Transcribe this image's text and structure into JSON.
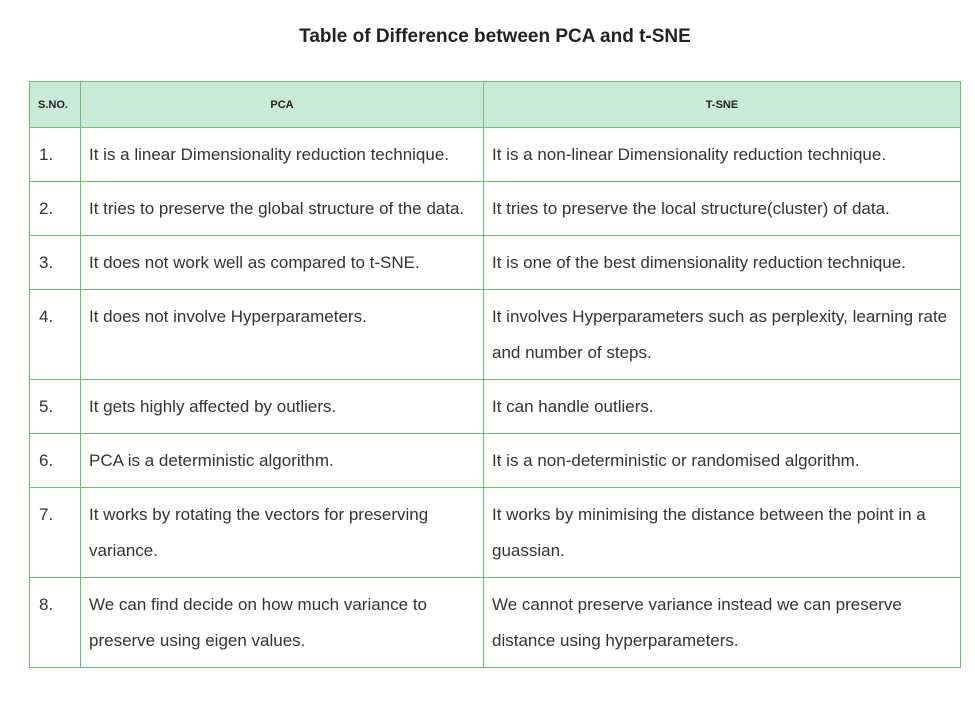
{
  "title": "Table of Difference between PCA and t-SNE",
  "table": {
    "headers": [
      "S.NO.",
      "PCA",
      "T-SNE"
    ],
    "rows": [
      {
        "sno": "1.",
        "pca": "It is a linear Dimensionality reduction technique.",
        "tsne": "It is a non-linear Dimensionality reduction technique."
      },
      {
        "sno": "2.",
        "pca": "It tries to preserve the global structure of the data.",
        "tsne": "It tries to preserve the local structure(cluster) of data."
      },
      {
        "sno": "3.",
        "pca": "It does not work well as compared to t-SNE.",
        "tsne": "It is one of the best dimensionality reduction technique."
      },
      {
        "sno": "4.",
        "pca": "It does not involve Hyperparameters.",
        "tsne": "It involves Hyperparameters such as perplexity, learning rate and number of steps."
      },
      {
        "sno": "5.",
        "pca": "It gets highly affected by outliers.",
        "tsne": "It can handle outliers."
      },
      {
        "sno": "6.",
        "pca": "PCA is a deterministic algorithm.",
        "tsne": "It is a non-deterministic or randomised algorithm."
      },
      {
        "sno": "7.",
        "pca": "It works by rotating the vectors for preserving variance.",
        "tsne": "It works by minimising the distance between the point in a guassian."
      },
      {
        "sno": "8.",
        "pca": "We can find decide on how much variance to preserve using eigen values.",
        "tsne": "We cannot preserve variance instead we can preserve distance using hyperparameters."
      }
    ]
  }
}
